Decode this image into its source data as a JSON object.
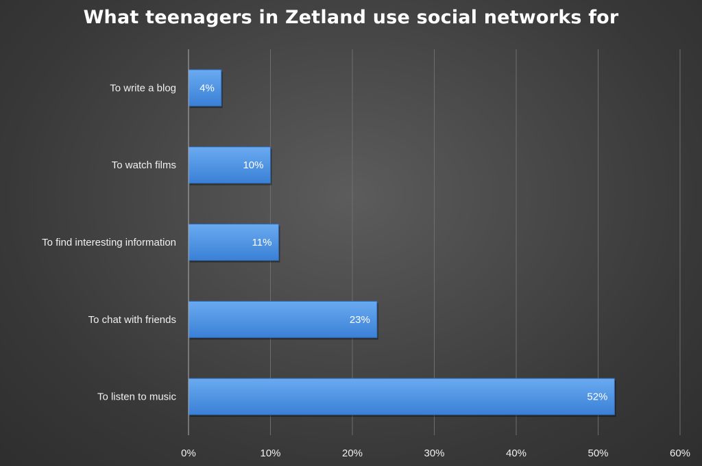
{
  "chart_data": {
    "type": "bar",
    "orientation": "horizontal",
    "title": "What teenagers in Zetland use social networks for",
    "categories": [
      "To write a blog",
      "To watch films",
      "To find interesting information",
      "To chat with friends",
      "To listen to music"
    ],
    "values": [
      4,
      10,
      11,
      23,
      52
    ],
    "value_labels": [
      "4%",
      "10%",
      "11%",
      "23%",
      "52%"
    ],
    "xlim": [
      0,
      60
    ],
    "x_ticks": [
      0,
      10,
      20,
      30,
      40,
      50,
      60
    ],
    "x_tick_labels": [
      "0%",
      "10%",
      "20%",
      "30%",
      "40%",
      "50%",
      "60%"
    ],
    "xlabel": "",
    "ylabel": "",
    "grid": true,
    "legend": "none",
    "colors": {
      "bar_top": "#6aaaf0",
      "bar_bottom": "#3a80d6",
      "bar_edge": "#2f6fc0",
      "grid": "#6e6e6e",
      "axis": "#b0b0b0",
      "text": "#ffffff",
      "label_text": "#f0f0f0"
    }
  }
}
